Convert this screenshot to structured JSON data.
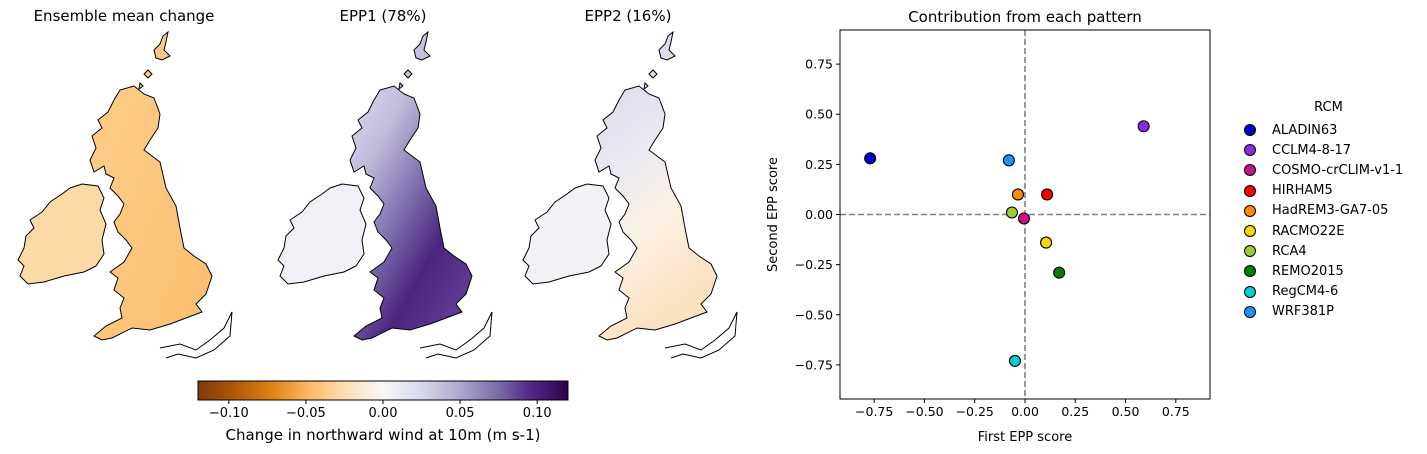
{
  "maps": [
    {
      "title": "Ensemble mean change",
      "fill": "ensemble-mean"
    },
    {
      "title": "EPP1 (78%)",
      "fill": "epp1"
    },
    {
      "title": "EPP2 (16%)",
      "fill": "epp2"
    }
  ],
  "colorbar": {
    "label": "Change in northward wind at 10m (m s-1)",
    "range": [
      -0.12,
      0.12
    ],
    "ticks": [
      -0.1,
      -0.05,
      0.0,
      0.05,
      0.1
    ],
    "tick_labels": [
      "−0.10",
      "−0.05",
      "0.00",
      "0.05",
      "0.10"
    ],
    "colormap": "PuOr",
    "colors": [
      "#7f3b08",
      "#b35806",
      "#e08214",
      "#fdb863",
      "#fee0b6",
      "#f7f7f7",
      "#d8daeb",
      "#b2abd2",
      "#8073ac",
      "#542788",
      "#2d004b"
    ]
  },
  "chart_data": {
    "type": "scatter",
    "title": "Contribution from each pattern",
    "xlabel": "First EPP score",
    "ylabel": "Second EPP score",
    "xlim": [
      -0.92,
      0.92
    ],
    "ylim": [
      -0.92,
      0.92
    ],
    "xticks": [
      -0.75,
      -0.5,
      -0.25,
      0.0,
      0.25,
      0.5,
      0.75
    ],
    "yticks": [
      -0.75,
      -0.5,
      -0.25,
      0.0,
      0.25,
      0.5,
      0.75
    ],
    "xtick_labels": [
      "−0.75",
      "−0.50",
      "−0.25",
      "0.00",
      "0.25",
      "0.50",
      "0.75"
    ],
    "ytick_labels": [
      "−0.75",
      "−0.50",
      "−0.25",
      "0.00",
      "0.25",
      "0.50",
      "0.75"
    ],
    "reference_lines": {
      "x": 0,
      "y": 0,
      "style": "dashed",
      "color": "#808080"
    },
    "grid": false,
    "legend": {
      "title": "RCM",
      "position": "outside-right"
    },
    "series": [
      {
        "name": "ALADIN63",
        "x": -0.77,
        "y": 0.28,
        "color": "#0000cd"
      },
      {
        "name": "CCLM4-8-17",
        "x": 0.59,
        "y": 0.44,
        "color": "#8a2be2"
      },
      {
        "name": "COSMO-crCLIM-v1-1",
        "x": -0.005,
        "y": -0.02,
        "color": "#c71585"
      },
      {
        "name": "HIRHAM5",
        "x": 0.11,
        "y": 0.1,
        "color": "#ff0000"
      },
      {
        "name": "HadREM3-GA7-05",
        "x": -0.035,
        "y": 0.1,
        "color": "#ff8c00"
      },
      {
        "name": "RACMO22E",
        "x": 0.105,
        "y": -0.14,
        "color": "#ffd700"
      },
      {
        "name": "RCA4",
        "x": -0.065,
        "y": 0.01,
        "color": "#9acd32"
      },
      {
        "name": "REMO2015",
        "x": 0.17,
        "y": -0.29,
        "color": "#008000"
      },
      {
        "name": "RegCM4-6",
        "x": -0.05,
        "y": -0.73,
        "color": "#00ced1"
      },
      {
        "name": "WRF381P",
        "x": -0.08,
        "y": 0.27,
        "color": "#1e90ff"
      }
    ]
  }
}
